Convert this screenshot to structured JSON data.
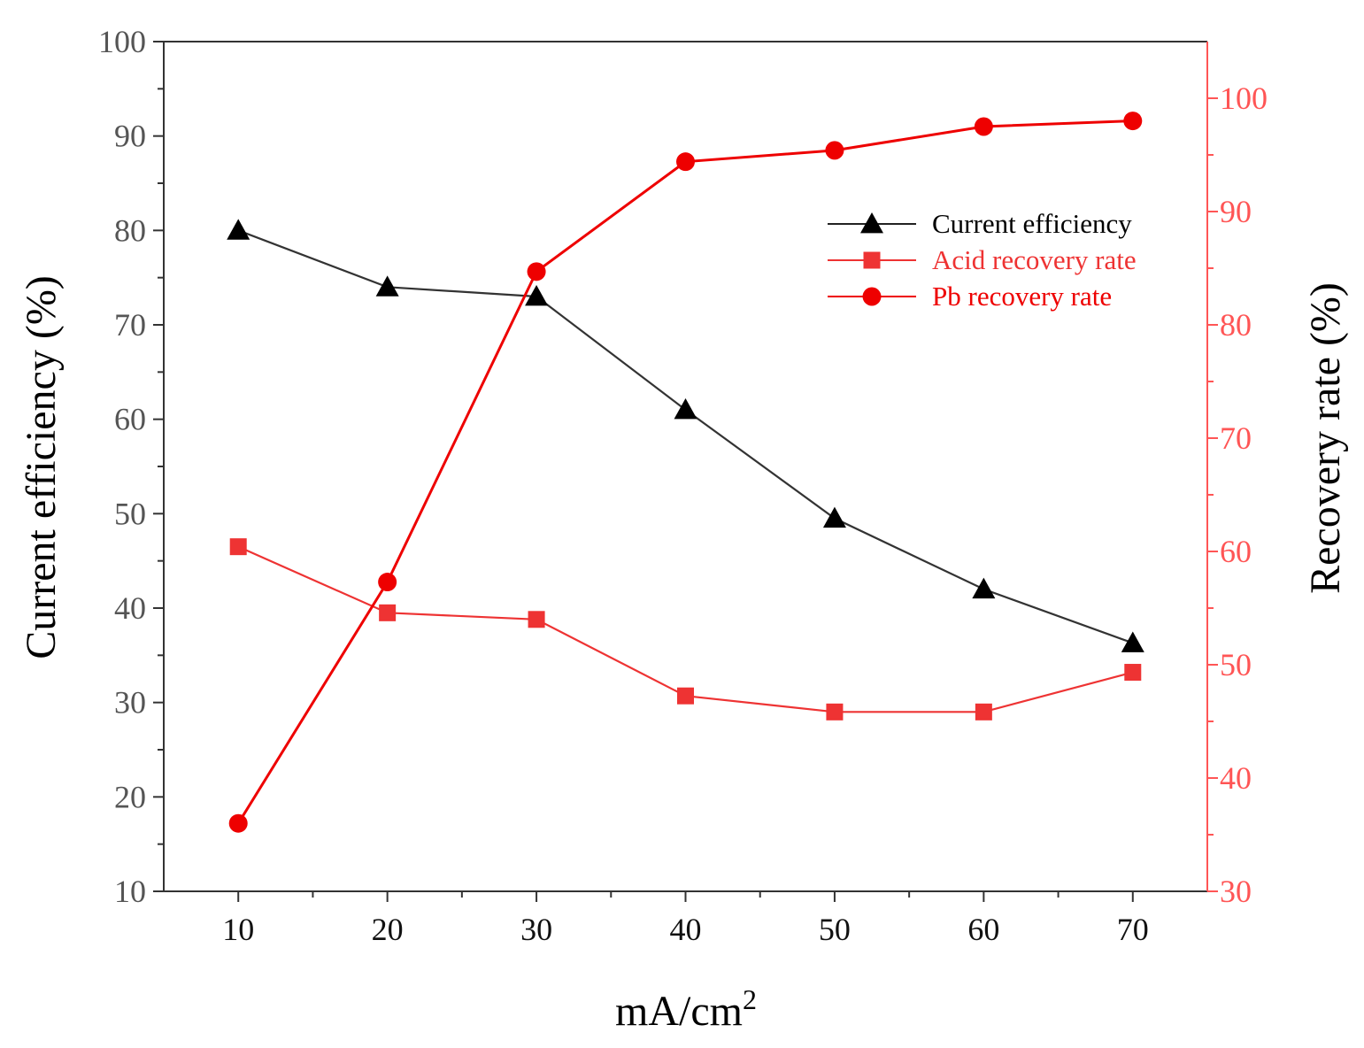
{
  "chart_data": {
    "type": "line",
    "title": "",
    "xlabel": "mA/cm",
    "xlabel_superscript": "2",
    "ylabel_left": "Current efficiency (%)",
    "ylabel_right": "Recovery rate (%)",
    "x": [
      10,
      20,
      30,
      40,
      50,
      60,
      70
    ],
    "xlim": [
      5,
      75
    ],
    "xticks": [
      "10",
      "20",
      "30",
      "40",
      "50",
      "60",
      "70"
    ],
    "ylim_left": [
      10,
      100
    ],
    "yticks_left": [
      "10",
      "20",
      "30",
      "40",
      "50",
      "60",
      "70",
      "80",
      "90",
      "100"
    ],
    "ylim_right": [
      30,
      105
    ],
    "yticks_right": [
      "30",
      "40",
      "50",
      "60",
      "70",
      "80",
      "90",
      "100"
    ],
    "grid": false,
    "legend_position": "top-right",
    "series": [
      {
        "name": "Current efficiency",
        "axis": "left",
        "marker": "triangle",
        "color": "#000000",
        "values": [
          80,
          74,
          73,
          61,
          49.5,
          42,
          36.3
        ]
      },
      {
        "name": "Acid recovery rate",
        "axis": "left",
        "marker": "square",
        "color": "#ee3333",
        "values": [
          46.5,
          39.5,
          38.8,
          30.7,
          29,
          29,
          33.2
        ]
      },
      {
        "name": "Pb recovery rate",
        "axis": "right",
        "marker": "circle",
        "color": "#ee0000",
        "values": [
          36,
          57.3,
          84.7,
          94.4,
          95.4,
          97.5,
          98
        ]
      }
    ]
  }
}
